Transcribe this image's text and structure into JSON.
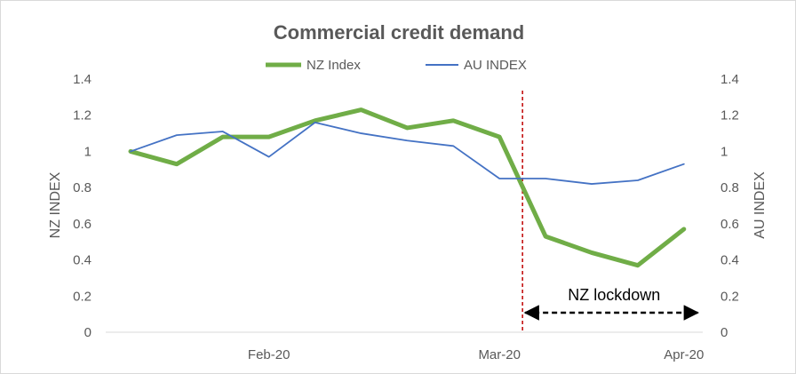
{
  "chart_data": {
    "type": "line",
    "title": "Commercial credit demand",
    "x": [
      "",
      "",
      "",
      "Feb-20",
      "",
      "",
      "",
      "",
      "Mar-20",
      "",
      "",
      "",
      "Apr-20"
    ],
    "x_tick_labels": [
      "Feb-20",
      "Mar-20",
      "Apr-20"
    ],
    "series": [
      {
        "name": "NZ Index",
        "axis": "left",
        "color": "#70AD47",
        "values": [
          1.0,
          0.93,
          1.08,
          1.08,
          1.17,
          1.23,
          1.13,
          1.17,
          1.08,
          0.53,
          0.44,
          0.37,
          0.57
        ]
      },
      {
        "name": "AU INDEX",
        "axis": "right",
        "color": "#4472C4",
        "values": [
          1.0,
          1.09,
          1.11,
          0.97,
          1.16,
          1.1,
          1.06,
          1.03,
          0.85,
          0.85,
          0.82,
          0.84,
          0.93
        ]
      }
    ],
    "ylabel_left": "NZ INDEX",
    "ylabel_right": "AU INDEX",
    "ylim_left": [
      0,
      1.4
    ],
    "ylim_right": [
      0,
      1.4
    ],
    "y_ticks_left": [
      "0",
      "0.2",
      "0.4",
      "0.6",
      "0.8",
      "1",
      "1.2",
      "1.4"
    ],
    "y_ticks_right": [
      "0",
      "0.2",
      "0.4",
      "0.6",
      "0.8",
      "1",
      "1.2",
      "1.4"
    ],
    "grid": false,
    "legend_position": "top",
    "annotations": [
      {
        "type": "vertical-line",
        "x_index": 8.5,
        "color": "#C00000",
        "style": "dashed"
      },
      {
        "type": "double-arrow",
        "text": "NZ lockdown",
        "from_x_index": 8.5,
        "to_x_index": 12.3,
        "color": "#000000"
      }
    ]
  }
}
